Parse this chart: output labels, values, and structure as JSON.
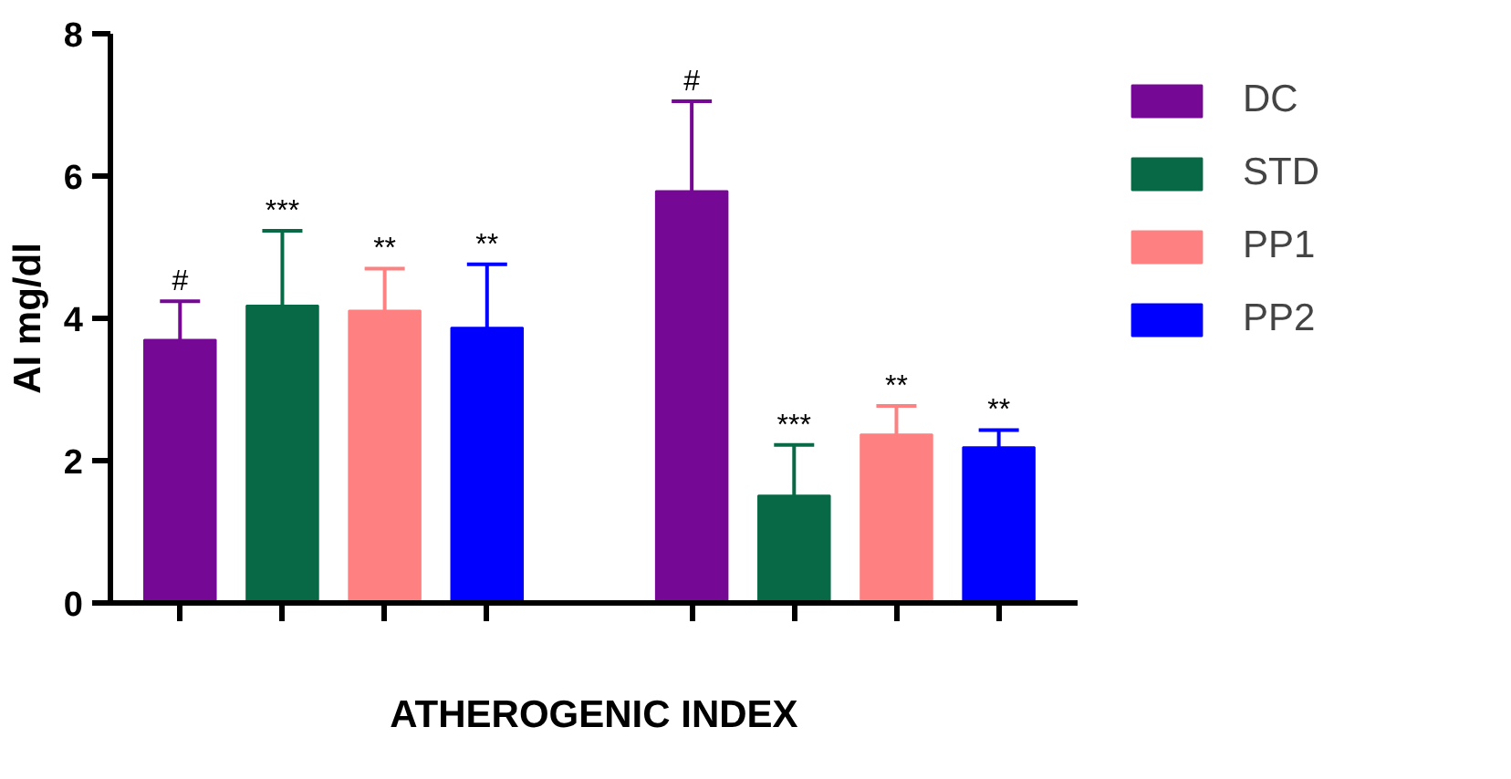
{
  "chart_data": {
    "type": "bar",
    "xlabel": "ATHEROGENIC INDEX",
    "ylabel": "AI mg/dl",
    "categories": [
      null,
      null
    ],
    "series": [
      {
        "name": "DC",
        "color": "#760896",
        "values": [
          3.7,
          5.79
        ],
        "errors": [
          [
            3.7,
            4.24
          ],
          [
            5.79,
            7.05
          ]
        ],
        "value_labels": [
          "#",
          "#"
        ]
      },
      {
        "name": "STD",
        "color": "#076945",
        "values": [
          4.18,
          1.51
        ],
        "errors": [
          [
            4.18,
            5.23
          ],
          [
            1.51,
            2.22
          ]
        ],
        "value_labels": [
          "***",
          "***"
        ]
      },
      {
        "name": "PP1",
        "color": "#fe8080",
        "values": [
          4.11,
          2.37
        ],
        "errors": [
          [
            4.11,
            4.7
          ],
          [
            2.37,
            2.77
          ]
        ],
        "value_labels": [
          "**",
          "**"
        ]
      },
      {
        "name": "PP2",
        "color": "#0000fe",
        "values": [
          3.87,
          2.19
        ],
        "errors": [
          [
            3.87,
            4.76
          ],
          [
            2.19,
            2.43
          ]
        ],
        "value_labels": [
          "**",
          "**"
        ]
      }
    ],
    "ylim": [
      0,
      8
    ],
    "yticks": [
      0,
      2,
      4,
      6,
      8
    ],
    "grid": false,
    "legend": "right"
  }
}
